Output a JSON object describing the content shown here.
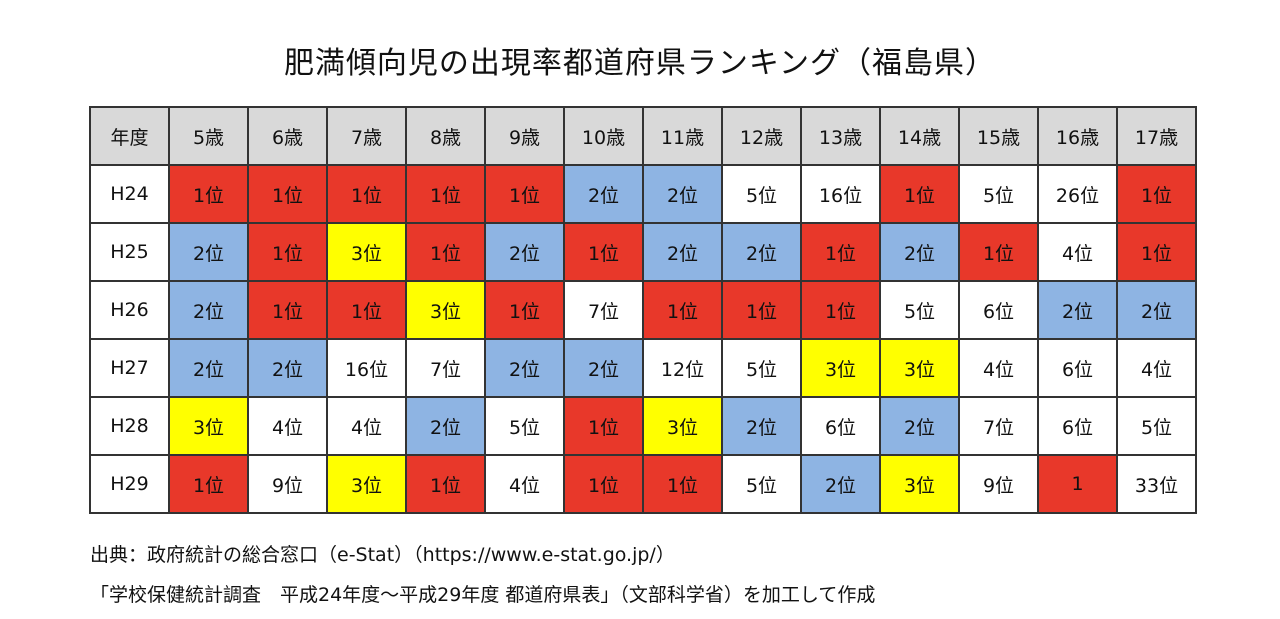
{
  "title": "肥満傾向児の出現率都道府県ランキング（福島県）",
  "chart_data": {
    "type": "table",
    "header": [
      "年度",
      "5歳",
      "6歳",
      "7歳",
      "8歳",
      "9歳",
      "10歳",
      "11歳",
      "12歳",
      "13歳",
      "14歳",
      "15歳",
      "16歳",
      "17歳"
    ],
    "rows": [
      {
        "year": "H24",
        "cells": [
          {
            "text": "1位",
            "color": "#e8382a"
          },
          {
            "text": "1位",
            "color": "#e8382a"
          },
          {
            "text": "1位",
            "color": "#e8382a"
          },
          {
            "text": "1位",
            "color": "#e8382a"
          },
          {
            "text": "1位",
            "color": "#e8382a"
          },
          {
            "text": "2位",
            "color": "#8eb4e3"
          },
          {
            "text": "2位",
            "color": "#8eb4e3"
          },
          {
            "text": "5位",
            "color": "#ffffff"
          },
          {
            "text": "16位",
            "color": "#ffffff"
          },
          {
            "text": "1位",
            "color": "#e8382a"
          },
          {
            "text": "5位",
            "color": "#ffffff"
          },
          {
            "text": "26位",
            "color": "#ffffff"
          },
          {
            "text": "1位",
            "color": "#e8382a"
          }
        ]
      },
      {
        "year": "H25",
        "cells": [
          {
            "text": "2位",
            "color": "#8eb4e3"
          },
          {
            "text": "1位",
            "color": "#e8382a"
          },
          {
            "text": "3位",
            "color": "#ffff00"
          },
          {
            "text": "1位",
            "color": "#e8382a"
          },
          {
            "text": "2位",
            "color": "#8eb4e3"
          },
          {
            "text": "1位",
            "color": "#e8382a"
          },
          {
            "text": "2位",
            "color": "#8eb4e3"
          },
          {
            "text": "2位",
            "color": "#8eb4e3"
          },
          {
            "text": "1位",
            "color": "#e8382a"
          },
          {
            "text": "2位",
            "color": "#8eb4e3"
          },
          {
            "text": "1位",
            "color": "#e8382a"
          },
          {
            "text": "4位",
            "color": "#ffffff"
          },
          {
            "text": "1位",
            "color": "#e8382a"
          }
        ]
      },
      {
        "year": "H26",
        "cells": [
          {
            "text": "2位",
            "color": "#8eb4e3"
          },
          {
            "text": "1位",
            "color": "#e8382a"
          },
          {
            "text": "1位",
            "color": "#e8382a"
          },
          {
            "text": "3位",
            "color": "#ffff00"
          },
          {
            "text": "1位",
            "color": "#e8382a"
          },
          {
            "text": "7位",
            "color": "#ffffff"
          },
          {
            "text": "1位",
            "color": "#e8382a"
          },
          {
            "text": "1位",
            "color": "#e8382a"
          },
          {
            "text": "1位",
            "color": "#e8382a"
          },
          {
            "text": "5位",
            "color": "#ffffff"
          },
          {
            "text": "6位",
            "color": "#ffffff"
          },
          {
            "text": "2位",
            "color": "#8eb4e3"
          },
          {
            "text": "2位",
            "color": "#8eb4e3"
          }
        ]
      },
      {
        "year": "H27",
        "cells": [
          {
            "text": "2位",
            "color": "#8eb4e3"
          },
          {
            "text": "2位",
            "color": "#8eb4e3"
          },
          {
            "text": "16位",
            "color": "#ffffff"
          },
          {
            "text": "7位",
            "color": "#ffffff"
          },
          {
            "text": "2位",
            "color": "#8eb4e3"
          },
          {
            "text": "2位",
            "color": "#8eb4e3"
          },
          {
            "text": "12位",
            "color": "#ffffff"
          },
          {
            "text": "5位",
            "color": "#ffffff"
          },
          {
            "text": "3位",
            "color": "#ffff00"
          },
          {
            "text": "3位",
            "color": "#ffff00"
          },
          {
            "text": "4位",
            "color": "#ffffff"
          },
          {
            "text": "6位",
            "color": "#ffffff"
          },
          {
            "text": "4位",
            "color": "#ffffff"
          }
        ]
      },
      {
        "year": "H28",
        "cells": [
          {
            "text": "3位",
            "color": "#ffff00"
          },
          {
            "text": "4位",
            "color": "#ffffff"
          },
          {
            "text": "4位",
            "color": "#ffffff"
          },
          {
            "text": "2位",
            "color": "#8eb4e3"
          },
          {
            "text": "5位",
            "color": "#ffffff"
          },
          {
            "text": "1位",
            "color": "#e8382a"
          },
          {
            "text": "3位",
            "color": "#ffff00"
          },
          {
            "text": "2位",
            "color": "#8eb4e3"
          },
          {
            "text": "6位",
            "color": "#ffffff"
          },
          {
            "text": "2位",
            "color": "#8eb4e3"
          },
          {
            "text": "7位",
            "color": "#ffffff"
          },
          {
            "text": "6位",
            "color": "#ffffff"
          },
          {
            "text": "5位",
            "color": "#ffffff"
          }
        ]
      },
      {
        "year": "H29",
        "cells": [
          {
            "text": "1位",
            "color": "#e8382a"
          },
          {
            "text": "9位",
            "color": "#ffffff"
          },
          {
            "text": "3位",
            "color": "#ffff00"
          },
          {
            "text": "1位",
            "color": "#e8382a"
          },
          {
            "text": "4位",
            "color": "#ffffff"
          },
          {
            "text": "1位",
            "color": "#e8382a"
          },
          {
            "text": "1位",
            "color": "#e8382a"
          },
          {
            "text": "5位",
            "color": "#ffffff"
          },
          {
            "text": "2位",
            "color": "#8eb4e3"
          },
          {
            "text": "3位",
            "color": "#ffff00"
          },
          {
            "text": "9位",
            "color": "#ffffff"
          },
          {
            "text": "1",
            "color": "#e8382a"
          },
          {
            "text": "33位",
            "color": "#ffffff"
          }
        ]
      }
    ]
  },
  "source_line1": "出典：政府統計の総合窓口（e-Stat）（https://www.e-stat.go.jp/）",
  "source_line2": "「学校保健統計調査　平成24年度～平成29年度 都道府県表」（文部科学省）を加工して作成"
}
